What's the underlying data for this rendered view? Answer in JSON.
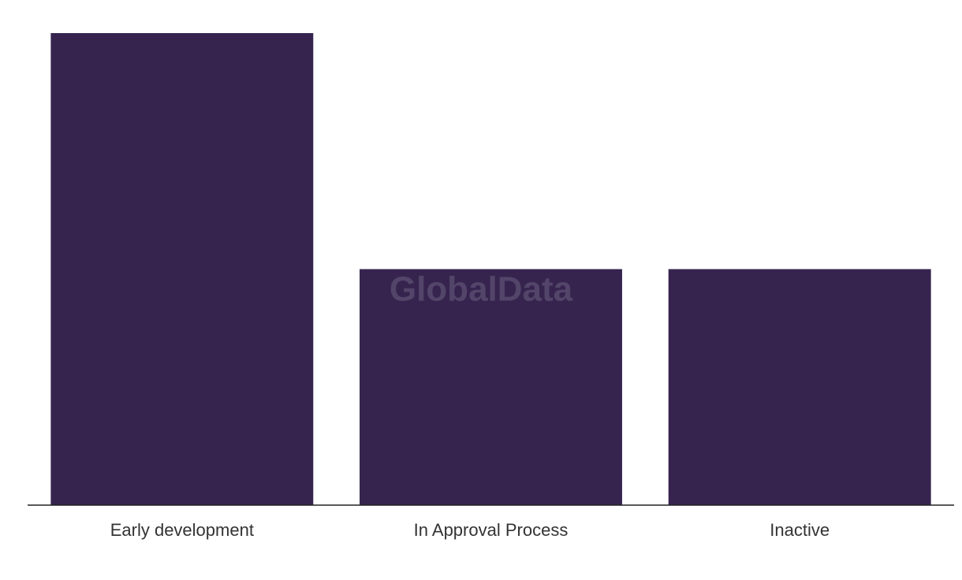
{
  "chart_data": {
    "type": "bar",
    "categories": [
      "Early development",
      "In Approval Process",
      "Inactive"
    ],
    "values": [
      2,
      1,
      1
    ],
    "color": "#36244f",
    "watermark": "GlobalData"
  }
}
